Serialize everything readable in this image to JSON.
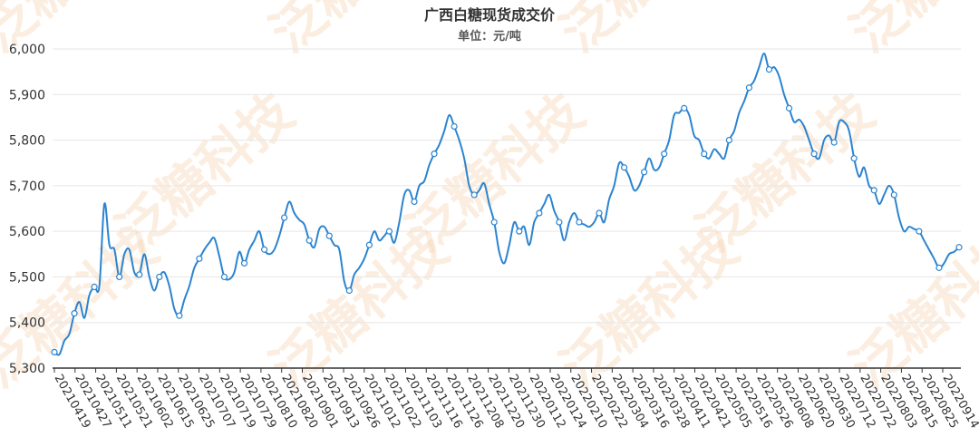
{
  "chart_data": {
    "type": "line",
    "title": "广西白糖现货成交价",
    "subtitle": "单位：元/吨",
    "ylim": [
      5300,
      6000
    ],
    "yticks": [
      "5,300",
      "5,400",
      "5,500",
      "5,600",
      "5,700",
      "5,800",
      "5,900",
      "6,000"
    ],
    "grid": true,
    "line_color": "#2b84d0",
    "marker_fill": "#ffffff",
    "watermark": "泛糖科技",
    "x_tick_labels": [
      "20210419",
      "20210427",
      "20210511",
      "20210521",
      "20210602",
      "20210615",
      "20210625",
      "20210707",
      "20210719",
      "20210729",
      "20210810",
      "20210820",
      "20210901",
      "20210913",
      "20210926",
      "20211012",
      "20211022",
      "20211103",
      "20211116",
      "20211126",
      "20211208",
      "20211220",
      "20211230",
      "20220112",
      "20220124",
      "20220210",
      "20220222",
      "20220304",
      "20220316",
      "20220328",
      "20220411",
      "20220421",
      "20220505",
      "20220516",
      "20220526",
      "20220608",
      "20220620",
      "20220630",
      "20220712",
      "20220722",
      "20220803",
      "20220815",
      "20220825",
      "20220914"
    ],
    "series": [
      {
        "values": [
          5335,
          5330,
          5360,
          5375,
          5420,
          5445,
          5410,
          5460,
          5478,
          5480,
          5660,
          5570,
          5560,
          5500,
          5550,
          5560,
          5510,
          5505,
          5550,
          5500,
          5470,
          5500,
          5510,
          5480,
          5430,
          5415,
          5450,
          5480,
          5520,
          5540,
          5560,
          5575,
          5585,
          5545,
          5500,
          5495,
          5510,
          5555,
          5530,
          5560,
          5580,
          5600,
          5560,
          5550,
          5560,
          5590,
          5630,
          5665,
          5640,
          5625,
          5615,
          5580,
          5565,
          5605,
          5610,
          5590,
          5570,
          5560,
          5490,
          5470,
          5505,
          5520,
          5540,
          5570,
          5600,
          5580,
          5590,
          5600,
          5575,
          5620,
          5680,
          5690,
          5665,
          5700,
          5710,
          5745,
          5770,
          5790,
          5820,
          5855,
          5830,
          5800,
          5760,
          5700,
          5680,
          5690,
          5705,
          5660,
          5620,
          5555,
          5530,
          5570,
          5620,
          5600,
          5610,
          5570,
          5620,
          5640,
          5660,
          5680,
          5645,
          5620,
          5580,
          5620,
          5640,
          5620,
          5615,
          5610,
          5620,
          5640,
          5620,
          5670,
          5700,
          5750,
          5740,
          5720,
          5690,
          5700,
          5730,
          5760,
          5735,
          5740,
          5770,
          5800,
          5855,
          5860,
          5870,
          5855,
          5810,
          5800,
          5770,
          5760,
          5780,
          5770,
          5760,
          5800,
          5820,
          5860,
          5885,
          5915,
          5930,
          5960,
          5990,
          5955,
          5960,
          5940,
          5900,
          5870,
          5840,
          5845,
          5830,
          5800,
          5770,
          5760,
          5800,
          5810,
          5795,
          5840,
          5840,
          5820,
          5760,
          5720,
          5740,
          5700,
          5690,
          5660,
          5680,
          5700,
          5680,
          5630,
          5600,
          5610,
          5605,
          5600,
          5580,
          5560,
          5540,
          5520,
          5530,
          5550,
          5555,
          5565
        ]
      }
    ]
  }
}
